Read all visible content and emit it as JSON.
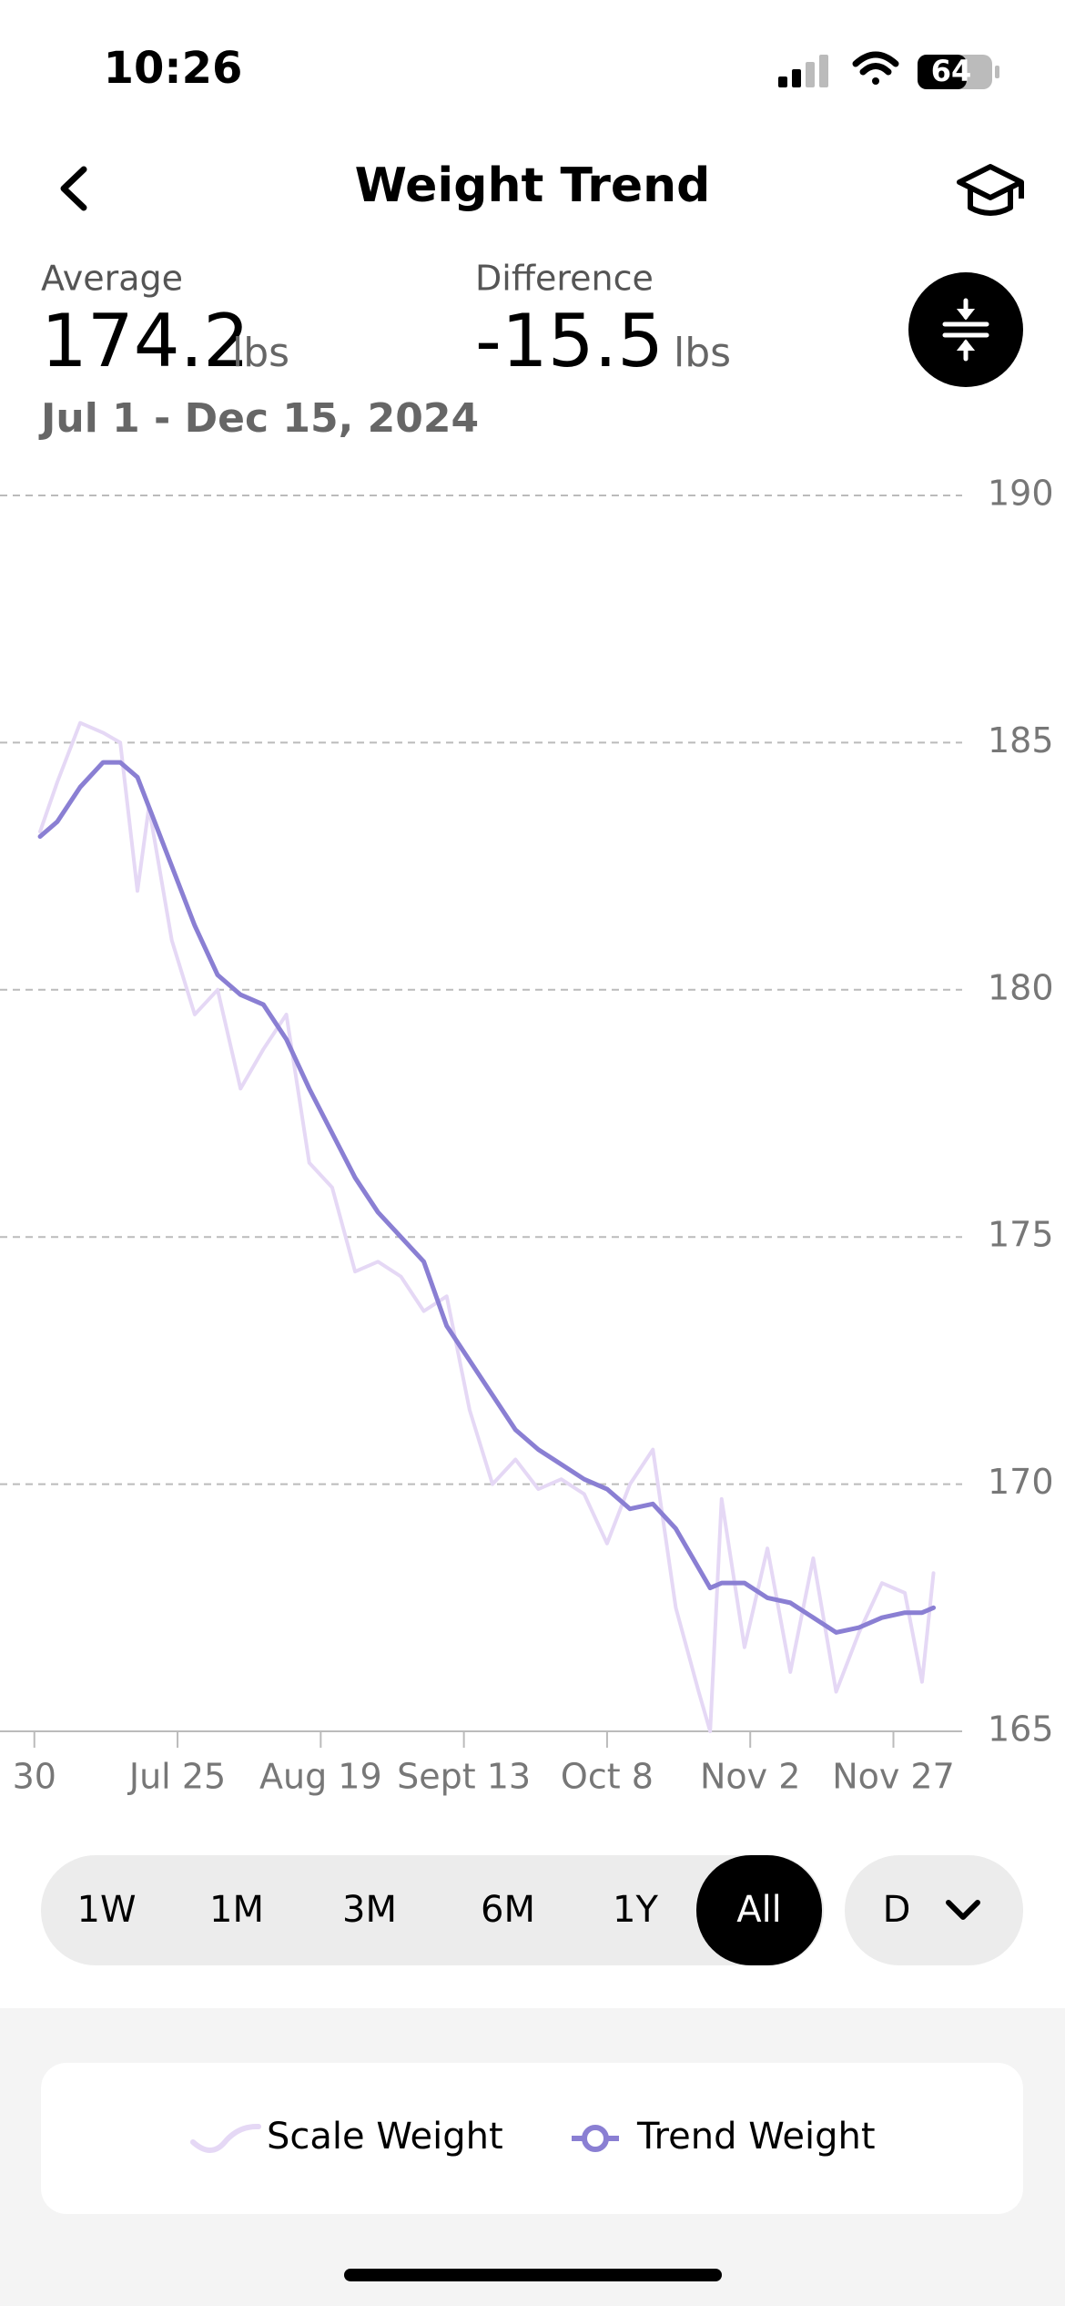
{
  "status_bar": {
    "time": "10:26",
    "battery": 64
  },
  "header": {
    "title": "Weight Trend"
  },
  "stats": {
    "average": {
      "label": "Average",
      "value": 174.2,
      "unit": "lbs"
    },
    "difference": {
      "label": "Difference",
      "value": -15.5,
      "unit": "lbs"
    },
    "date_range": "Jul 1 - Dec 15, 2024"
  },
  "chart_data": {
    "type": "line",
    "x": [
      "2024-07-01",
      "2024-07-04",
      "2024-07-08",
      "2024-07-12",
      "2024-07-15",
      "2024-07-18",
      "2024-07-20",
      "2024-07-24",
      "2024-07-28",
      "2024-08-01",
      "2024-08-05",
      "2024-08-09",
      "2024-08-13",
      "2024-08-17",
      "2024-08-21",
      "2024-08-25",
      "2024-08-29",
      "2024-09-02",
      "2024-09-06",
      "2024-09-10",
      "2024-09-14",
      "2024-09-18",
      "2024-09-22",
      "2024-09-26",
      "2024-09-30",
      "2024-10-04",
      "2024-10-08",
      "2024-10-12",
      "2024-10-16",
      "2024-10-20",
      "2024-10-24",
      "2024-10-26",
      "2024-10-28",
      "2024-11-01",
      "2024-11-05",
      "2024-11-09",
      "2024-11-13",
      "2024-11-17",
      "2024-11-21",
      "2024-11-25",
      "2024-11-29",
      "2024-12-02",
      "2024-12-04"
    ],
    "series": [
      {
        "name": "Scale Weight",
        "color": "#e5d8f5",
        "values": [
          183.2,
          184.2,
          185.4,
          185.2,
          185.0,
          182.0,
          183.7,
          181.0,
          179.5,
          180.0,
          178.0,
          178.8,
          179.5,
          176.5,
          176.0,
          174.3,
          174.5,
          174.2,
          173.5,
          173.8,
          171.5,
          170.0,
          170.5,
          169.9,
          170.1,
          169.8,
          168.8,
          170.0,
          170.7,
          167.5,
          165.8,
          165.0,
          169.7,
          166.7,
          168.7,
          166.2,
          168.5,
          165.8,
          167.0,
          168.0,
          167.8,
          166.0,
          168.2
        ]
      },
      {
        "name": "Trend Weight",
        "color": "#8a7fd3",
        "values": [
          183.1,
          183.4,
          184.1,
          184.6,
          184.6,
          184.3,
          183.7,
          182.5,
          181.3,
          180.3,
          179.9,
          179.7,
          179.0,
          178.0,
          177.1,
          176.2,
          175.5,
          175.0,
          174.5,
          173.2,
          172.5,
          171.8,
          171.1,
          170.7,
          170.4,
          170.1,
          169.9,
          169.5,
          169.6,
          169.1,
          168.3,
          167.9,
          168.0,
          168.0,
          167.7,
          167.6,
          167.3,
          167.0,
          167.1,
          167.3,
          167.4,
          167.4,
          167.5
        ]
      }
    ],
    "xlim": [
      "2024-06-24",
      "2024-12-09"
    ],
    "xticks": [
      {
        "value": "2024-06-30",
        "label": "30"
      },
      {
        "value": "2024-07-25",
        "label": "Jul 25"
      },
      {
        "value": "2024-08-19",
        "label": "Aug 19"
      },
      {
        "value": "2024-09-13",
        "label": "Sept 13"
      },
      {
        "value": "2024-10-08",
        "label": "Oct 8"
      },
      {
        "value": "2024-11-02",
        "label": "Nov 2"
      },
      {
        "value": "2024-11-27",
        "label": "Nov 27"
      }
    ],
    "ylim": [
      165,
      190
    ],
    "yticks": [
      165,
      170,
      175,
      180,
      185,
      190
    ],
    "grid": true
  },
  "range_buttons": {
    "options": [
      "1W",
      "1M",
      "3M",
      "6M",
      "1Y",
      "All"
    ],
    "selected": 5
  },
  "interval_dropdown": "D"
}
